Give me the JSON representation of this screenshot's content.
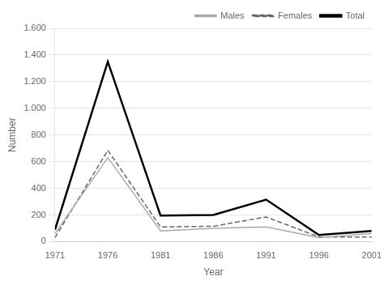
{
  "chart_data": {
    "type": "line",
    "x": [
      1971,
      1976,
      1981,
      1986,
      1991,
      1996,
      2001
    ],
    "series": [
      {
        "name": "Males",
        "color": "#aaaaaa",
        "line_style": "solid",
        "values": [
          60,
          630,
          80,
          100,
          110,
          30,
          60
        ]
      },
      {
        "name": "Females",
        "color": "#666666",
        "line_style": "dashed",
        "values": [
          30,
          685,
          110,
          115,
          185,
          35,
          35
        ]
      },
      {
        "name": "Total",
        "color": "#000000",
        "line_style": "solid",
        "values": [
          90,
          1350,
          195,
          200,
          315,
          50,
          80
        ]
      }
    ],
    "x_label": "Year",
    "y_label": "Number",
    "xlim": [
      1971,
      2001
    ],
    "xticks": [
      1971,
      1976,
      1981,
      1986,
      1991,
      1996,
      2001
    ],
    "ylim": [
      0,
      1600
    ],
    "yticks": [
      0,
      200,
      400,
      600,
      800,
      {
        "value": 1000,
        "label": "1.000"
      },
      {
        "value": 1200,
        "label": "1.200"
      },
      {
        "value": 1400,
        "label": "1.400"
      },
      {
        "value": 1600,
        "label": "1.600"
      }
    ],
    "grid": "y",
    "legend": "upper right"
  }
}
